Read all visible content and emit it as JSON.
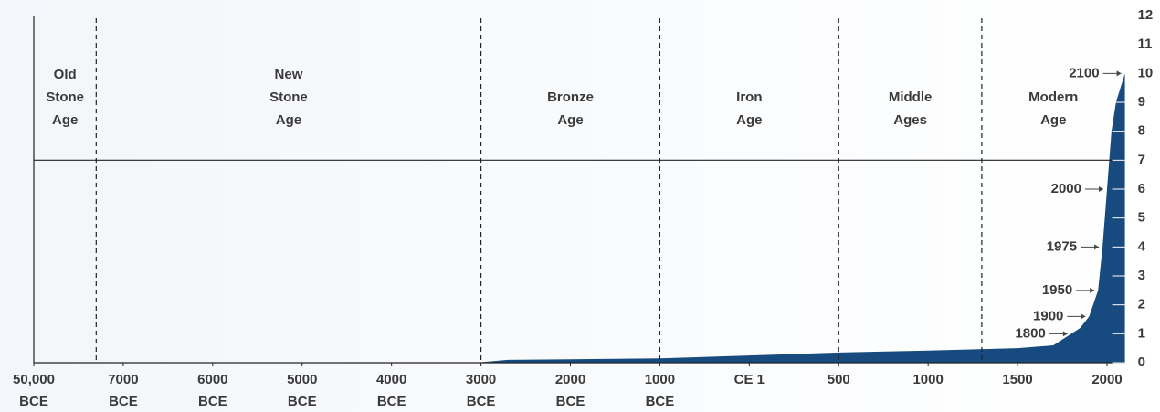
{
  "chart_data": {
    "type": "area",
    "color": "#174a7e",
    "x": [
      -50000,
      -10000,
      -5000,
      -3000,
      -2700,
      -1000,
      1,
      500,
      1000,
      1500,
      1700,
      1800,
      1850,
      1900,
      1950,
      1975,
      2000,
      2025,
      2050,
      2100
    ],
    "values": [
      0,
      0.001,
      0.005,
      0.014,
      0.1,
      0.15,
      0.25,
      0.35,
      0.42,
      0.5,
      0.6,
      1,
      1.2,
      1.6,
      2.5,
      4,
      6,
      8,
      9,
      10
    ],
    "xlim": [
      -50000,
      2100
    ],
    "xticks": [
      {
        "value": -50000,
        "label": "50,000 BCE"
      },
      {
        "value": -7000,
        "label": "7000 BCE"
      },
      {
        "value": -6000,
        "label": "6000 BCE"
      },
      {
        "value": -5000,
        "label": "5000 BCE"
      },
      {
        "value": -4000,
        "label": "4000 BCE"
      },
      {
        "value": -3000,
        "label": "3000 BCE"
      },
      {
        "value": -2000,
        "label": "2000 BCE"
      },
      {
        "value": -1000,
        "label": "1000 BCE"
      },
      {
        "value": 1,
        "label": "CE 1"
      },
      500,
      1000,
      1500,
      2000
    ],
    "ylim": [
      0,
      12
    ],
    "yticks": [
      0,
      1,
      2,
      3,
      4,
      5,
      6,
      7,
      8,
      9,
      10,
      11,
      12
    ],
    "reference_line": 7,
    "eras": [
      {
        "name": "Old Stone Age",
        "start": -50000,
        "end": -20000
      },
      {
        "name": "New Stone Age",
        "start": -20000,
        "end": -3000
      },
      {
        "name": "Bronze Age",
        "start": -3000,
        "end": -1000
      },
      {
        "name": "Iron Age",
        "start": -1000,
        "end": 500
      },
      {
        "name": "Middle Ages",
        "start": 500,
        "end": 1300
      },
      {
        "name": "Modern Age",
        "start": 1300,
        "end": 2100
      }
    ],
    "annotations": [
      {
        "label": "2100",
        "x": 2100,
        "y": 10
      },
      {
        "label": "2000",
        "x": 2000,
        "y": 6
      },
      {
        "label": "1975",
        "x": 1975,
        "y": 4
      },
      {
        "label": "1950",
        "x": 1950,
        "y": 2.5
      },
      {
        "label": "1900",
        "x": 1900,
        "y": 1.6
      },
      {
        "label": "1800",
        "x": 1800,
        "y": 1
      }
    ]
  }
}
